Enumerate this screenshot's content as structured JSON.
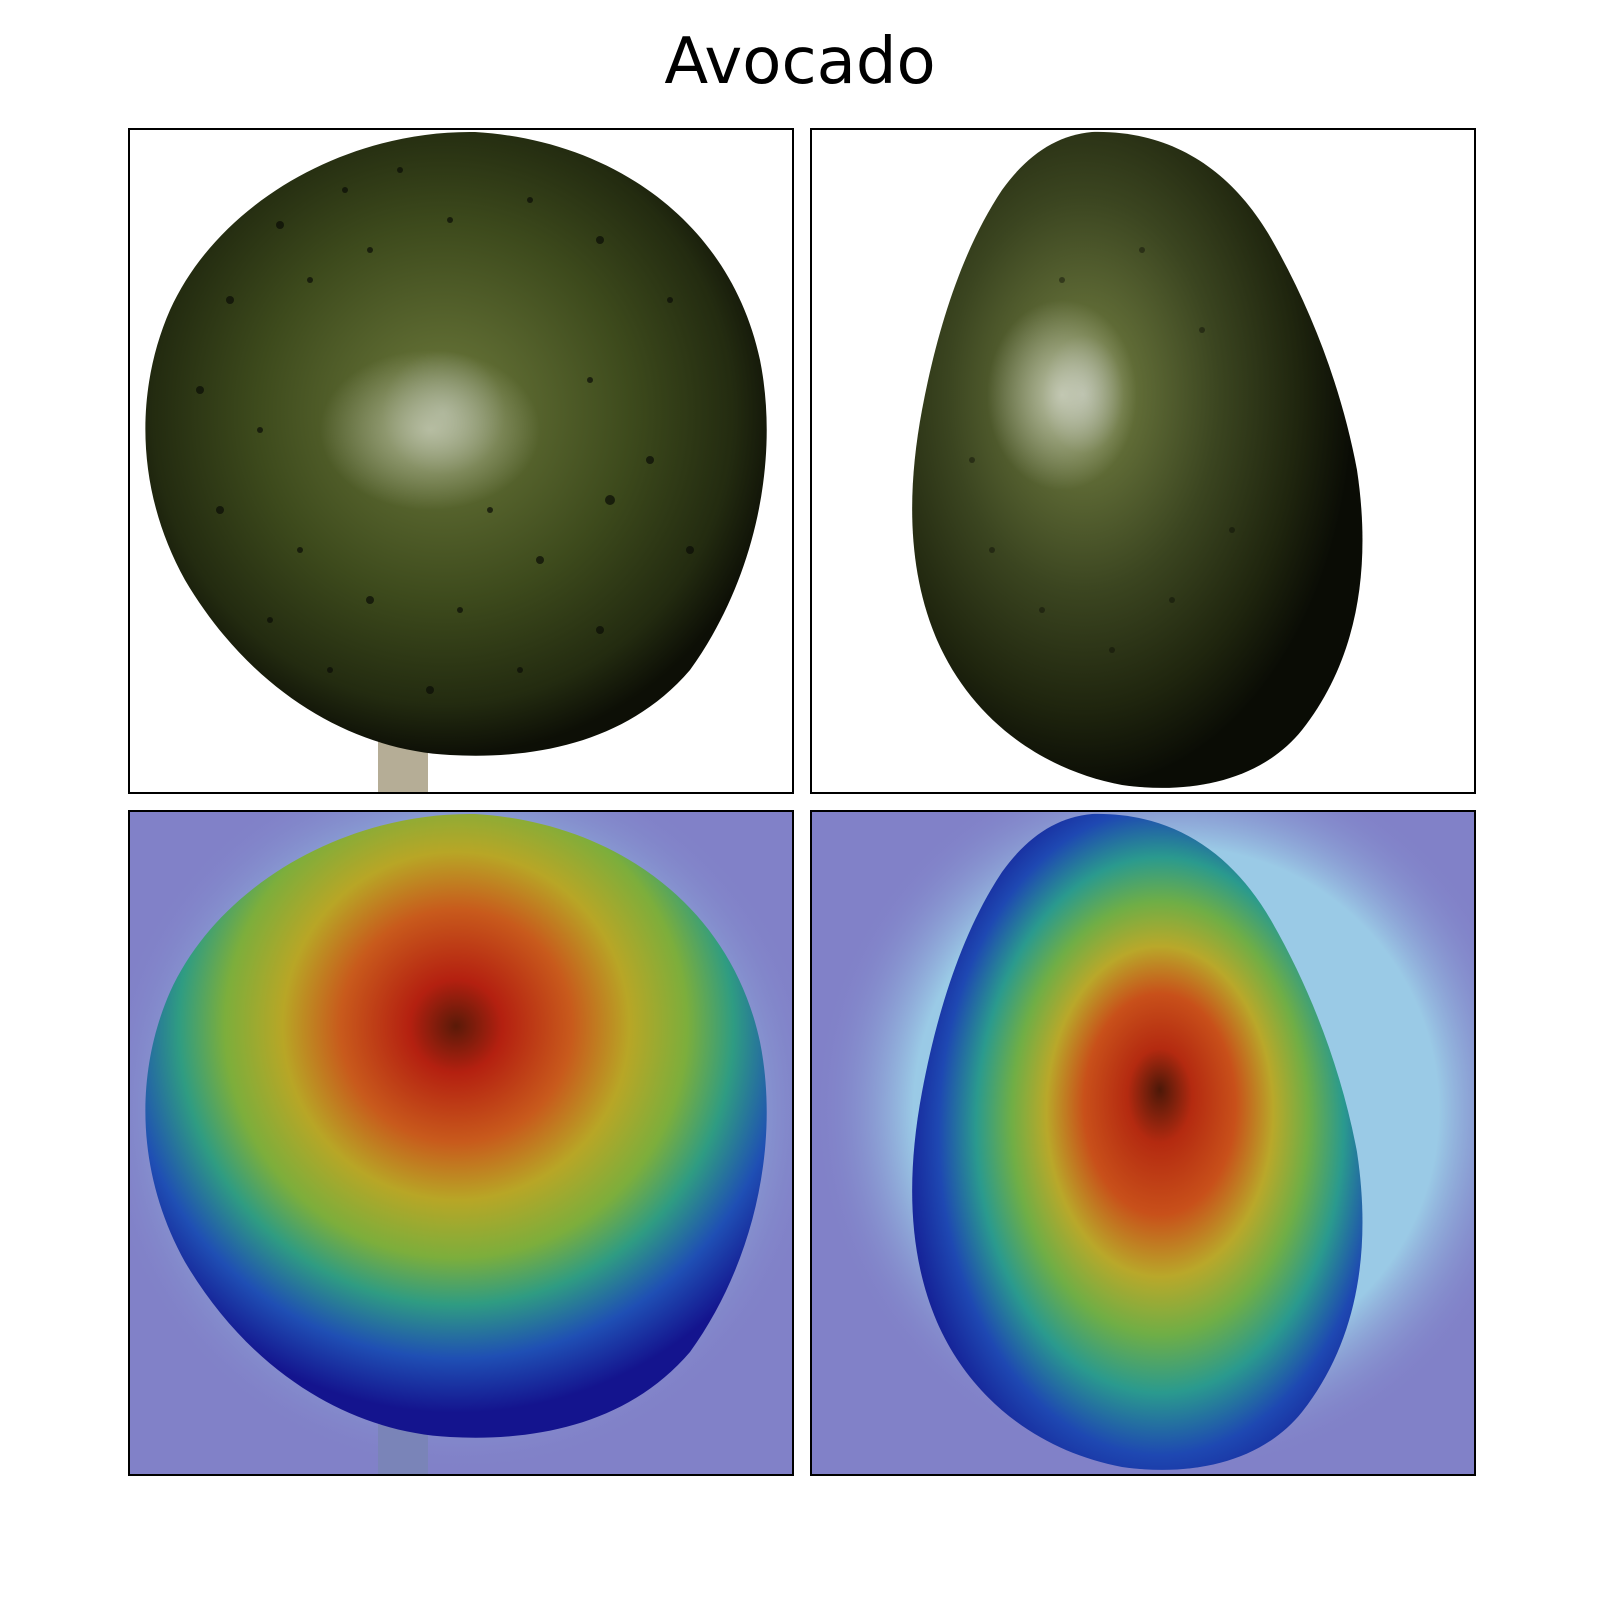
{
  "figure": {
    "title": "Avocado"
  },
  "panels": [
    {
      "name": "avocado-photo-round",
      "kind": "photo"
    },
    {
      "name": "avocado-photo-oval",
      "kind": "photo"
    },
    {
      "name": "avocado-heatmap-round",
      "kind": "heatmap-overlay"
    },
    {
      "name": "avocado-heatmap-oval",
      "kind": "heatmap-overlay"
    }
  ],
  "colors": {
    "background": "#ffffff",
    "avocado_dark": "#12140a",
    "avocado_mid": "#3f4a1e",
    "avocado_highlight": "#9aa784",
    "heatmap_base": "#7f7fc8",
    "heatmap_blue": "#1d1db0",
    "heatmap_cyan": "#8ef0f0",
    "heatmap_green": "#4aa870",
    "heatmap_yellow": "#c8c020",
    "heatmap_orange": "#d08020",
    "heatmap_red": "#b82010"
  }
}
